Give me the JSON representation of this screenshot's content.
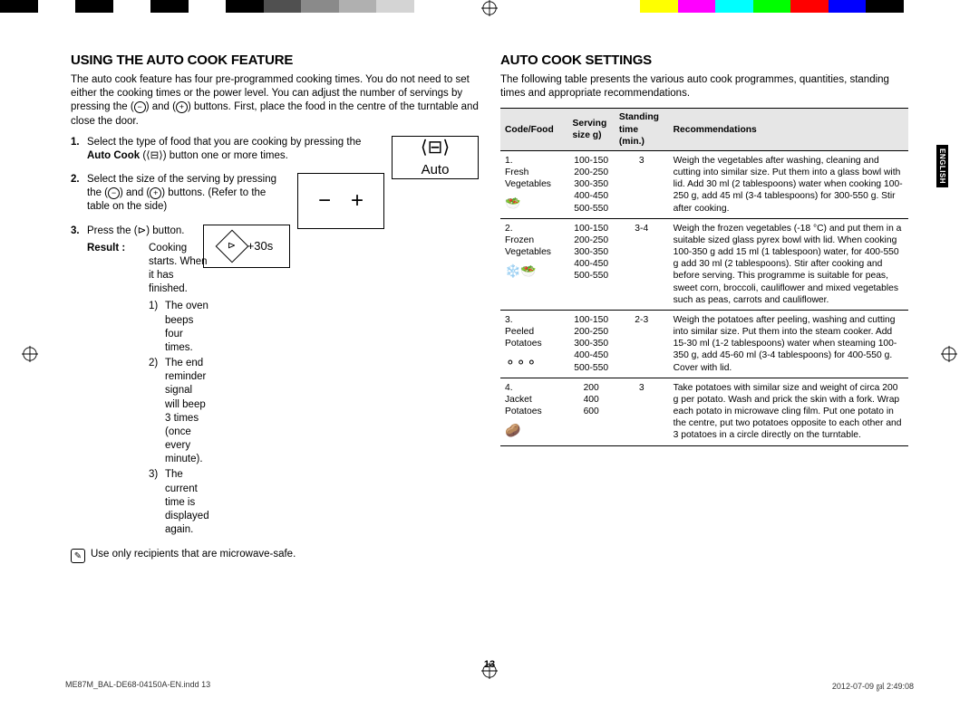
{
  "colorbar_top": [
    "#000",
    "#fff",
    "#000",
    "#fff",
    "#000",
    "#fff",
    "#000",
    "#505050",
    "#8a8a8a",
    "#b0b0b0",
    "#d4d4d4",
    "#fff",
    "#fff",
    "#fff",
    "#fff",
    "#fff",
    "#fff",
    "#ffff00",
    "#ff00ff",
    "#00ffff",
    "#00ff00",
    "#ff0000",
    "#0000ff",
    "#000",
    "#fff",
    "#fff"
  ],
  "left": {
    "title": "USING THE AUTO COOK FEATURE",
    "intro": "The auto cook feature has four pre-programmed cooking times. You do not need to set either the cooking times or the power level. You can adjust the number of servings by pressing the (",
    "intro2": ") buttons. First, place the food in the centre of the turntable and close the door.",
    "step1a": "Select the type of food that you are cooking by pressing the ",
    "step1b": "Auto Cook",
    "step1c": " (",
    "step1d": ") button one or more times.",
    "step2": "Select the size of the serving by pressing the (",
    "step2b": ") and (",
    "step2c": ") buttons. (Refer to the table on the side)",
    "step3": "Press the (",
    "step3b": ") button.",
    "result_label": "Result :",
    "result_text": "Cooking starts. When it has finished.",
    "sub1": "The oven beeps four times.",
    "sub2": "The end reminder signal will beep 3 times (once every minute).",
    "sub3": "The current time is displayed again.",
    "note": "Use only recipients that are microwave-safe.",
    "auto_label": "Auto",
    "plus30": "+30s"
  },
  "right": {
    "title": "AUTO COOK SETTINGS",
    "intro": "The following table presents the various auto cook programmes, quantities, standing times and appropriate recommendations.",
    "headers": [
      "Code/Food",
      "Serving size g)",
      "Standing time (min.)",
      "Recommendations"
    ],
    "rows": [
      {
        "food": "1. Fresh Vegetables",
        "icon": "🥗",
        "serving": [
          "100-150",
          "200-250",
          "300-350",
          "400-450",
          "500-550"
        ],
        "standing": "3",
        "reco": "Weigh the vegetables after washing, cleaning and cutting into similar size. Put them into a glass bowl with lid. Add 30 ml (2 tablespoons) water when cooking 100-250 g, add 45 ml (3-4 tablespoons) for 300-550 g. Stir after cooking."
      },
      {
        "food": "2. Frozen Vegetables",
        "icon": "❄️🥗",
        "serving": [
          "100-150",
          "200-250",
          "300-350",
          "400-450",
          "500-550"
        ],
        "standing": "3-4",
        "reco": "Weigh the frozen vegetables (-18 °C) and put them in a suitable sized glass pyrex bowl with lid. When cooking 100-350 g add 15 ml (1 tablespoon) water, for 400-550 g add 30 ml (2 tablespoons). Stir after cooking and before serving. This programme is suitable for peas, sweet corn, broccoli, cauliflower and mixed vegetables such as peas, carrots and cauliflower."
      },
      {
        "food": "3. Peeled Potatoes",
        "icon": "⚬⚬⚬",
        "serving": [
          "100-150",
          "200-250",
          "300-350",
          "400-450",
          "500-550"
        ],
        "standing": "2-3",
        "reco": "Weigh the potatoes after peeling, washing and cutting into similar size. Put them into the steam cooker. Add 15-30 ml (1-2 tablespoons) water when steaming 100-350 g, add 45-60 ml (3-4 tablespoons) for 400-550 g. Cover with lid."
      },
      {
        "food": "4. Jacket Potatoes",
        "icon": "🥔",
        "serving": [
          "200",
          "400",
          "600"
        ],
        "standing": "3",
        "reco": "Take potatoes with similar size and weight of circa 200 g per potato. Wash and prick the skin with a fork. Wrap each potato in microwave cling film. Put one potato in the centre, put two potatoes opposite to each other and 3 potatoes in a circle directly on the turntable."
      }
    ]
  },
  "sidetab": "ENGLISH",
  "pagenum": "13",
  "footer_left": "ME87M_BAL-DE68-04150A-EN.indd   13",
  "footer_right": "2012-07-09   ㏿ 2:49:08"
}
